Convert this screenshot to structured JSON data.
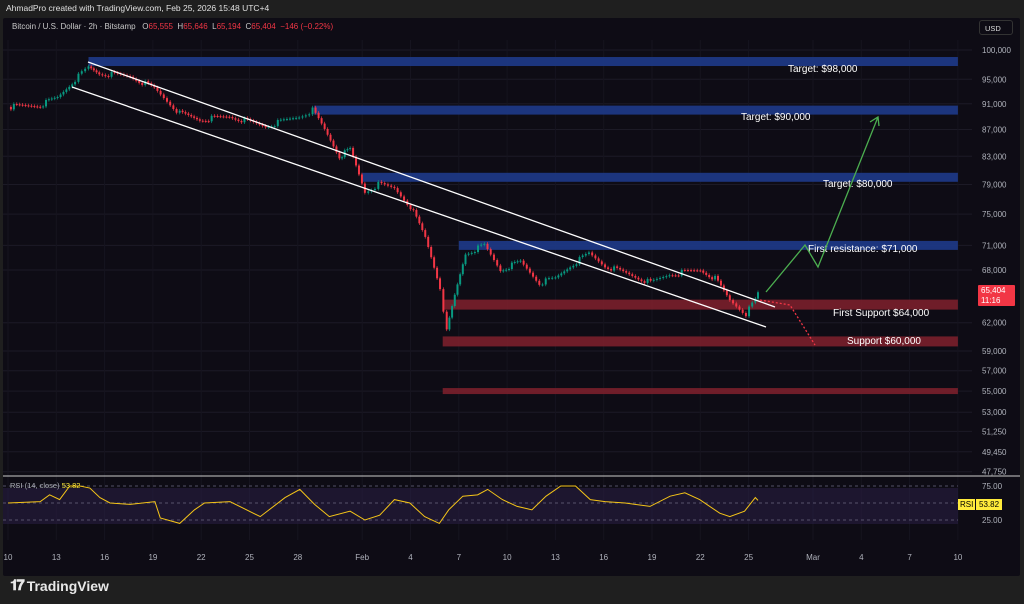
{
  "header": {
    "credit": "AhmadPro created with TradingView.com, Feb 25, 2026 15:48 UTC+4"
  },
  "legend": {
    "symbol": "Bitcoin / U.S. Dollar · 2h · Bitstamp",
    "o_label": "O",
    "open": "65,555",
    "h_label": "H",
    "high": "65,646",
    "l_label": "L",
    "low": "65,194",
    "c_label": "C",
    "close": "65,404",
    "change": "−146 (−0.22%)"
  },
  "price_axis": {
    "currency": "USD",
    "last_price": "65,404",
    "countdown": "11:16"
  },
  "footer": {
    "brand": "TradingView"
  },
  "rsi": {
    "label": "RSI (14, close)",
    "value": "53.82",
    "tag": "RSI"
  },
  "colors": {
    "up": "#089981",
    "down": "#f23645",
    "resistance_zone": "#1e3a8a",
    "support_zone": "#7a1f2b",
    "rsi": "#f5c518",
    "background": "#0e0c15"
  },
  "chart_data": {
    "type": "candlestick",
    "title": "Bitcoin / U.S. Dollar · 2h · Bitstamp",
    "y_scale": "log",
    "ylim": [
      47000,
      103000
    ],
    "yticks": [
      100000,
      95000,
      91000,
      87000,
      83000,
      79000,
      75000,
      71000,
      68000,
      62000,
      59000,
      57000,
      55000,
      53000,
      51250,
      49450,
      47750
    ],
    "ytick_labels": [
      "100,000",
      "95,000",
      "91,000",
      "87,000",
      "83,000",
      "79,000",
      "75,000",
      "71,000",
      "68,000",
      "62,000",
      "59,000",
      "57,000",
      "55,000",
      "53,000",
      "51,250",
      "49,450",
      "47,750"
    ],
    "xticks": [
      [
        "2026-01-10",
        "10"
      ],
      [
        "2026-01-13",
        "13"
      ],
      [
        "2026-01-16",
        "16"
      ],
      [
        "2026-01-19",
        "19"
      ],
      [
        "2026-01-22",
        "22"
      ],
      [
        "2026-01-25",
        "25"
      ],
      [
        "2026-01-28",
        "28"
      ],
      [
        "2026-02-01",
        "Feb"
      ],
      [
        "2026-02-04",
        "4"
      ],
      [
        "2026-02-07",
        "7"
      ],
      [
        "2026-02-10",
        "10"
      ],
      [
        "2026-02-13",
        "13"
      ],
      [
        "2026-02-16",
        "16"
      ],
      [
        "2026-02-19",
        "19"
      ],
      [
        "2026-02-22",
        "22"
      ],
      [
        "2026-02-25",
        "25"
      ],
      [
        "2026-03-01",
        "Mar"
      ],
      [
        "2026-03-04",
        "4"
      ],
      [
        "2026-03-07",
        "7"
      ],
      [
        "2026-03-10",
        "10"
      ]
    ],
    "price_path": [
      [
        "2026-01-10T00:00",
        90500
      ],
      [
        "2026-01-12T00:00",
        90800
      ],
      [
        "2026-01-13T02:00",
        92000
      ],
      [
        "2026-01-14T04:00",
        95000
      ],
      [
        "2026-01-15T00:00",
        97000
      ],
      [
        "2026-01-15T16:00",
        96000
      ],
      [
        "2026-01-17T14:00",
        95500
      ],
      [
        "2026-01-19T02:00",
        93500
      ],
      [
        "2026-01-20T16:00",
        89500
      ],
      [
        "2026-01-21T22:00",
        88500
      ],
      [
        "2026-01-23T18:00",
        89000
      ],
      [
        "2026-01-26T00:00",
        87500
      ],
      [
        "2026-01-28T02:00",
        89000
      ],
      [
        "2026-01-28T22:00",
        90000
      ],
      [
        "2026-01-29T16:00",
        87000
      ],
      [
        "2026-01-30T14:00",
        83000
      ],
      [
        "2026-01-31T06:00",
        84000
      ],
      [
        "2026-02-01T04:00",
        78000
      ],
      [
        "2026-02-02T00:00",
        79000
      ],
      [
        "2026-02-03T00:00",
        78500
      ],
      [
        "2026-02-04T00:00",
        76000
      ],
      [
        "2026-02-04T22:00",
        72000
      ],
      [
        "2026-02-05T20:00",
        66000
      ],
      [
        "2026-02-06T06:00",
        61000
      ],
      [
        "2026-02-06T18:00",
        65000
      ],
      [
        "2026-02-07T10:00",
        70000
      ],
      [
        "2026-02-08T14:00",
        71000
      ],
      [
        "2026-02-09T14:00",
        68000
      ],
      [
        "2026-02-10T20:00",
        69000
      ],
      [
        "2026-02-12T00:00",
        66500
      ],
      [
        "2026-02-13T00:00",
        67000
      ],
      [
        "2026-02-13T22:00",
        68500
      ],
      [
        "2026-02-15T02:00",
        70000
      ],
      [
        "2026-02-16T02:00",
        68500
      ],
      [
        "2026-02-17T14:00",
        67500
      ],
      [
        "2026-02-18T22:00",
        66500
      ],
      [
        "2026-02-20T02:00",
        67500
      ],
      [
        "2026-02-22T00:00",
        68000
      ],
      [
        "2026-02-22T22:00",
        67000
      ],
      [
        "2026-02-23T20:00",
        64500
      ],
      [
        "2026-02-24T20:00",
        63000
      ],
      [
        "2026-02-25T10:00",
        64500
      ],
      [
        "2026-02-25T14:00",
        65404
      ]
    ],
    "zones": [
      {
        "label": "Target: $98,000",
        "price": 98000,
        "kind": "resistance",
        "from": "2026-01-15",
        "to": "2026-03-10"
      },
      {
        "label": "Target: $90,000",
        "price": 90000,
        "kind": "resistance",
        "from": "2026-01-29",
        "to": "2026-03-10"
      },
      {
        "label": "Target: $80,000",
        "price": 80000,
        "kind": "resistance",
        "from": "2026-02-01",
        "to": "2026-03-10"
      },
      {
        "label": "First resistance: $71,000",
        "price": 71000,
        "kind": "resistance",
        "from": "2026-02-07",
        "to": "2026-03-10"
      },
      {
        "label": "First Support $64,000",
        "price": 64000,
        "kind": "support",
        "from": "2026-02-06",
        "to": "2026-03-10"
      },
      {
        "label": "Support $60,000",
        "price": 60000,
        "kind": "support",
        "from": "2026-02-06",
        "to": "2026-03-10"
      },
      {
        "label": "",
        "price": 55000,
        "kind": "support",
        "from": "2026-02-06",
        "to": "2026-03-10"
      }
    ],
    "rsi_levels": [
      75,
      50,
      25
    ],
    "rsi_ytick_labels": [
      "75.00",
      "25.00"
    ],
    "rsi_path": [
      [
        "2026-01-10T00:00",
        50
      ],
      [
        "2026-01-12T00:00",
        52
      ],
      [
        "2026-01-12T14:00",
        62
      ],
      [
        "2026-01-13T05:00",
        55
      ],
      [
        "2026-01-13T20:00",
        75
      ],
      [
        "2026-01-14T11:00",
        75
      ],
      [
        "2026-01-15T02:00",
        72
      ],
      [
        "2026-01-15T17:00",
        58
      ],
      [
        "2026-01-16T08:00",
        50
      ],
      [
        "2026-01-17T14:00",
        48
      ],
      [
        "2026-01-19T03:00",
        52
      ],
      [
        "2026-01-19T11:00",
        28
      ],
      [
        "2026-01-20T16:00",
        20
      ],
      [
        "2026-01-21T14:00",
        40
      ],
      [
        "2026-01-22T05:00",
        50
      ],
      [
        "2026-01-23T19:00",
        52
      ],
      [
        "2026-01-25T16:00",
        30
      ],
      [
        "2026-01-27T05:00",
        58
      ],
      [
        "2026-01-28T03:00",
        70
      ],
      [
        "2026-01-29T01:00",
        48
      ],
      [
        "2026-01-29T23:00",
        30
      ],
      [
        "2026-01-31T06:00",
        38
      ],
      [
        "2026-02-01T04:00",
        25
      ],
      [
        "2026-02-02T02:00",
        32
      ],
      [
        "2026-02-03T00:00",
        55
      ],
      [
        "2026-02-03T23:00",
        50
      ],
      [
        "2026-02-04T21:00",
        30
      ],
      [
        "2026-02-05T19:00",
        20
      ],
      [
        "2026-02-06T09:00",
        40
      ],
      [
        "2026-02-07T06:00",
        60
      ],
      [
        "2026-02-08T04:00",
        62
      ],
      [
        "2026-02-08T19:00",
        70
      ],
      [
        "2026-02-09T17:00",
        55
      ],
      [
        "2026-02-10T15:00",
        45
      ],
      [
        "2026-02-11T13:00",
        40
      ],
      [
        "2026-02-12T10:00",
        60
      ],
      [
        "2026-02-13T08:00",
        75
      ],
      [
        "2026-02-14T06:00",
        75
      ],
      [
        "2026-02-15T04:00",
        55
      ],
      [
        "2026-02-16T02:00",
        52
      ],
      [
        "2026-02-17T08:00",
        50
      ],
      [
        "2026-02-18T21:00",
        45
      ],
      [
        "2026-02-20T03:00",
        60
      ],
      [
        "2026-02-21T01:00",
        65
      ],
      [
        "2026-02-21T23:00",
        55
      ],
      [
        "2026-02-23T05:00",
        35
      ],
      [
        "2026-02-23T20:00",
        30
      ],
      [
        "2026-02-24T18:00",
        38
      ],
      [
        "2026-02-25T10:00",
        58
      ],
      [
        "2026-02-25T14:00",
        53.82
      ]
    ]
  }
}
